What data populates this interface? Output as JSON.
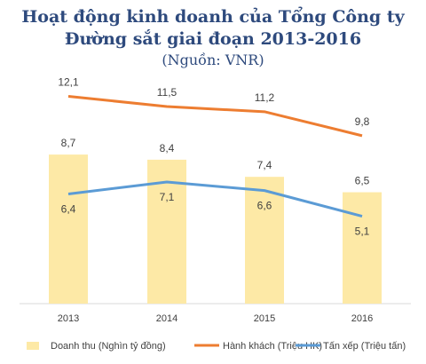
{
  "chart_data": {
    "type": "bar",
    "title": "Hoạt động kinh doanh của Tổng Công ty",
    "title_line2": "Đường sắt giai đoạn 2013-2016",
    "subtitle": "(Nguồn: VNR)",
    "categories": [
      "2013",
      "2014",
      "2015",
      "2016"
    ],
    "series": [
      {
        "name": "Doanh thu (Nghìn tỷ đồng)",
        "type": "bar",
        "color": "#fde9a6",
        "values": [
          8.7,
          8.4,
          7.4,
          6.5
        ],
        "labels": [
          "8,7",
          "8,4",
          "7,4",
          "6,5"
        ]
      },
      {
        "name": "Hành khách (Triệu HK)",
        "type": "line",
        "color": "#ed7d31",
        "values": [
          12.1,
          11.5,
          11.2,
          9.8
        ],
        "labels": [
          "12,1",
          "11,5",
          "11,2",
          "9,8"
        ]
      },
      {
        "name": "Tấn xếp (Triệu tấn)",
        "type": "line",
        "color": "#5b9bd5",
        "values": [
          6.4,
          7.1,
          6.6,
          5.1
        ],
        "labels": [
          "6,4",
          "7,1",
          "6,6",
          "5,1"
        ]
      }
    ],
    "grid": false,
    "legend_position": "bottom"
  }
}
